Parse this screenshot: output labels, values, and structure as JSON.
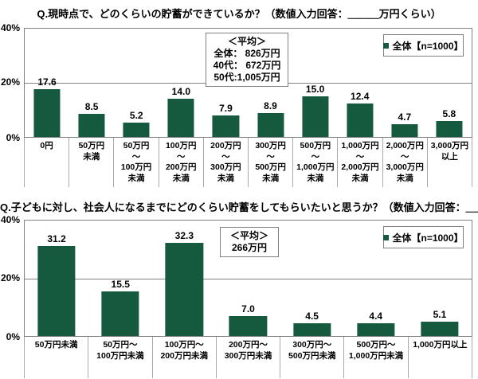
{
  "colors": {
    "bar": "#15593E",
    "grid": "#808080",
    "separator": "#A9A9A9"
  },
  "chart_data": [
    {
      "type": "bar",
      "title": "Q.現時点で、どのくらいの貯蓄ができているか？（数値入力回答：＿＿＿万円くらい）",
      "legend": "全体【n=1000】",
      "legend_position": "top-right",
      "average_box": [
        "＜平均＞",
        "全体： 826万円",
        "40代： 672万円",
        "50代:1,005万円"
      ],
      "y_ticks": [
        "40%",
        "20%",
        "0%"
      ],
      "ylim": [
        0,
        40
      ],
      "grid": "horizontal line at 20%",
      "xlabel": "",
      "ylabel": "",
      "categories": [
        [
          "0円"
        ],
        [
          "50万円",
          "未満"
        ],
        [
          "50万円",
          "〜",
          "100万円",
          "未満"
        ],
        [
          "100万円",
          "〜",
          "200万円",
          "未満"
        ],
        [
          "200万円",
          "〜",
          "300万円",
          "未満"
        ],
        [
          "300万円",
          "〜",
          "500万円",
          "未満"
        ],
        [
          "500万円",
          "〜",
          "1,000万円",
          "未満"
        ],
        [
          "1,000万円",
          "〜",
          "2,000万円",
          "未満"
        ],
        [
          "2,000万円",
          "〜",
          "3,000万円",
          "未満"
        ],
        [
          "3,000万円",
          "以上"
        ]
      ],
      "values": [
        17.6,
        8.5,
        5.2,
        14.0,
        7.9,
        8.9,
        15.0,
        12.4,
        4.7,
        5.8
      ]
    },
    {
      "type": "bar",
      "title": "Q.子どもに対し、社会人になるまでにどのくらい貯蓄をしてもらいたいと思うか？（数値入力回答：＿＿＿万円くらい）",
      "legend": "全体【n=1000】",
      "legend_position": "top-right",
      "average_box": [
        "＜平均＞",
        "266万円"
      ],
      "y_ticks": [
        "40%",
        "20%",
        "0%"
      ],
      "ylim": [
        0,
        40
      ],
      "grid": "horizontal line at 20%",
      "xlabel": "",
      "ylabel": "",
      "categories": [
        [
          "50万円未満"
        ],
        [
          "50万円〜",
          "100万円未満"
        ],
        [
          "100万円〜",
          "200万円未満"
        ],
        [
          "200万円〜",
          "300万円未満"
        ],
        [
          "300万円〜",
          "500万円未満"
        ],
        [
          "500万円〜",
          "1,000万円未満"
        ],
        [
          "1,000万円以上"
        ]
      ],
      "values": [
        31.2,
        15.5,
        32.3,
        7.0,
        4.5,
        4.4,
        5.1
      ]
    }
  ]
}
